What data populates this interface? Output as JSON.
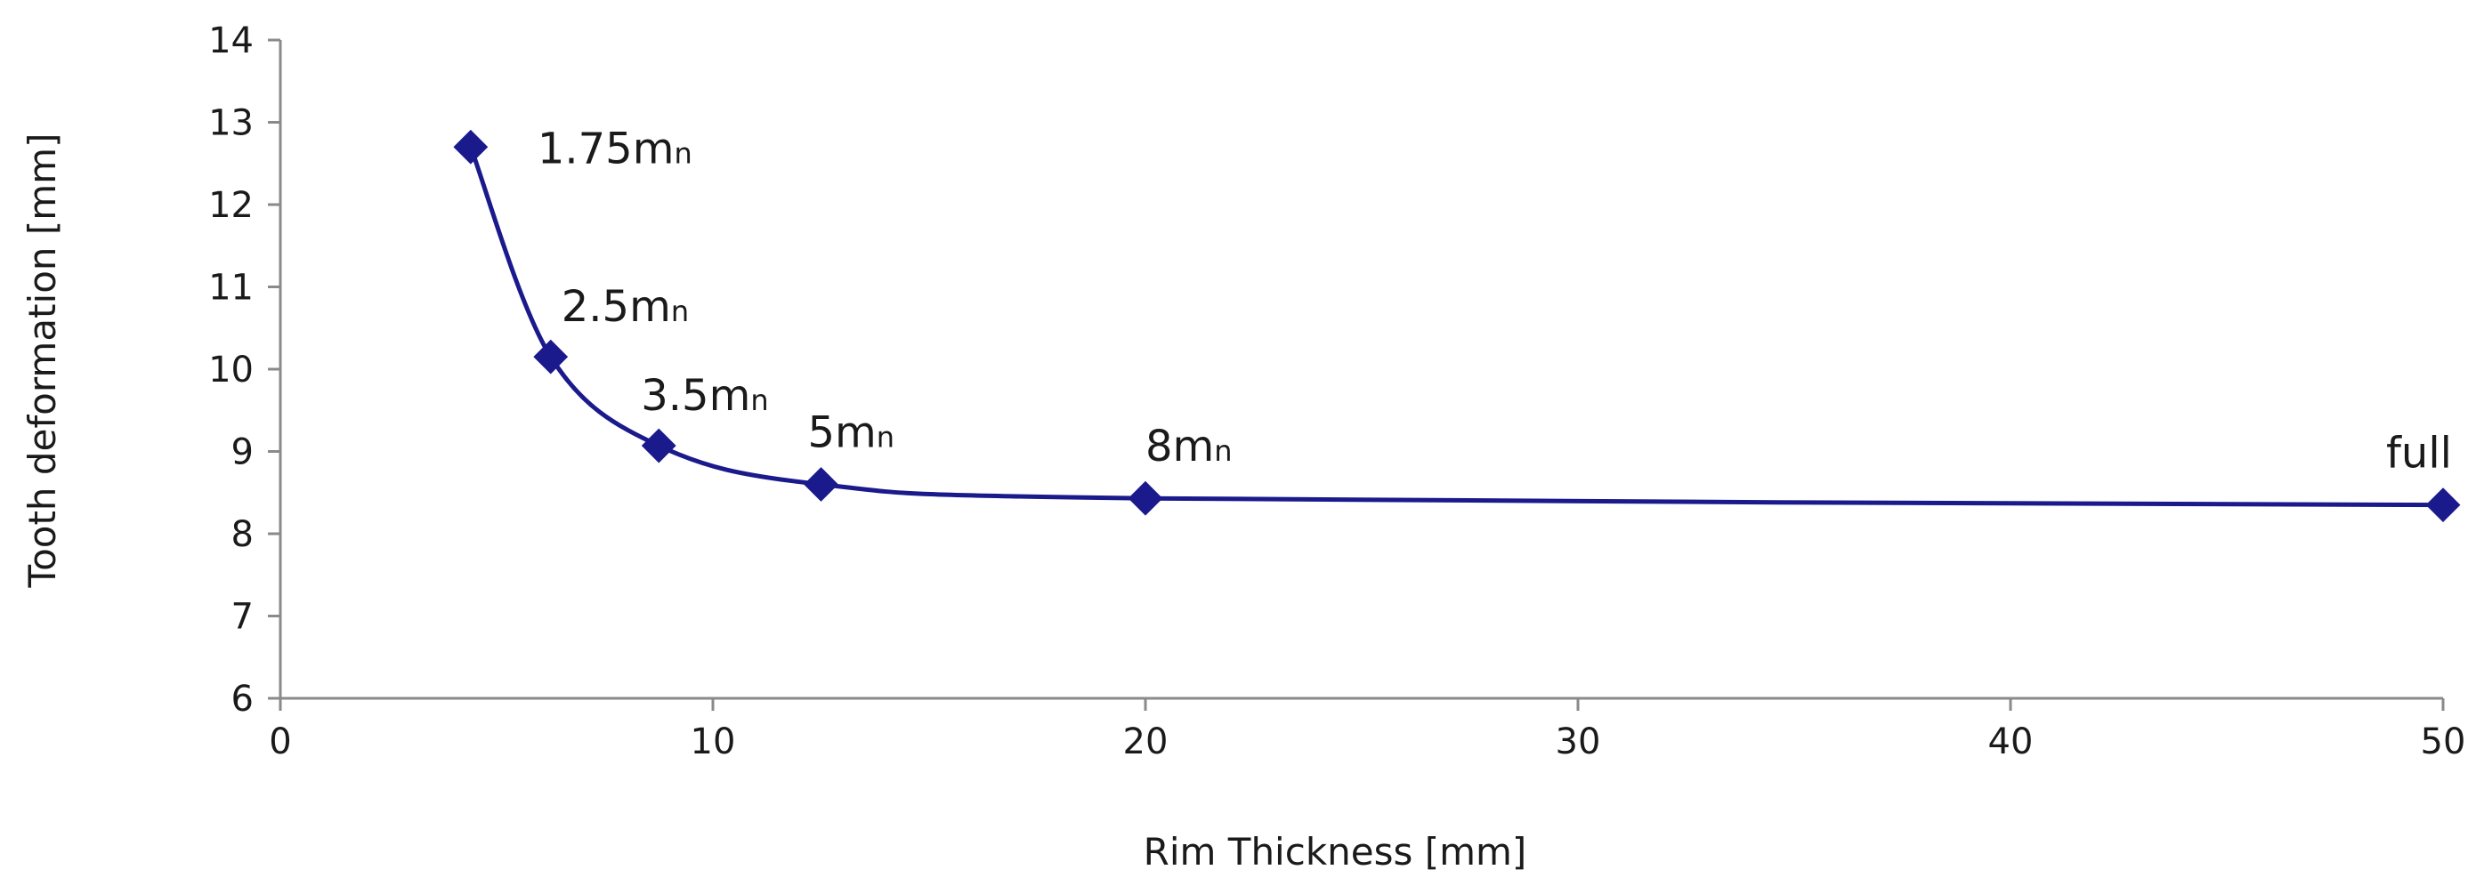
{
  "chart_data": {
    "type": "line",
    "title": "",
    "xlabel": "Rim Thickness [mm]",
    "ylabel": "Tooth deformation [mm]",
    "xlim": [
      0,
      50
    ],
    "ylim": [
      6,
      14
    ],
    "x_ticks": [
      "0",
      "10",
      "20",
      "30",
      "40",
      "50"
    ],
    "y_ticks": [
      "6",
      "7",
      "8",
      "9",
      "10",
      "11",
      "12",
      "13",
      "14"
    ],
    "grid": false,
    "legend": "none",
    "series_color": "#1a1a8c",
    "smooth": true,
    "marker": "diamond",
    "points": [
      {
        "x": 4.4,
        "y": 12.7,
        "label": "1.75m",
        "sub": "n"
      },
      {
        "x": 6.25,
        "y": 10.15,
        "label": "2.5m",
        "sub": "n"
      },
      {
        "x": 8.75,
        "y": 9.07,
        "label": "3.5m",
        "sub": "n"
      },
      {
        "x": 12.5,
        "y": 8.6,
        "label": "5m",
        "sub": "n"
      },
      {
        "x": 20,
        "y": 8.43,
        "label": "8m",
        "sub": "n"
      },
      {
        "x": 50,
        "y": 8.35,
        "label": "full",
        "sub": ""
      }
    ]
  }
}
